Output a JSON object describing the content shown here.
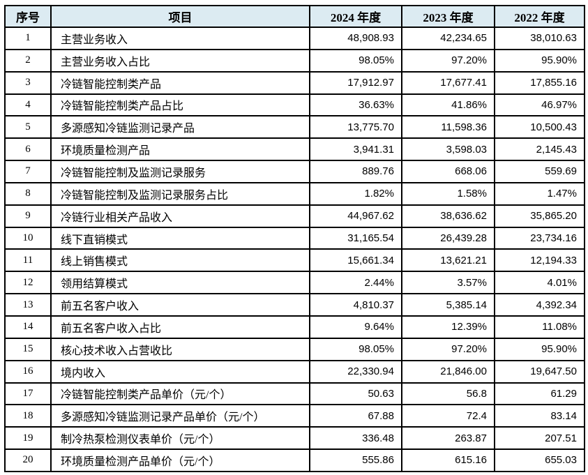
{
  "colors": {
    "header_bg": "#dcebf2",
    "border": "#000000",
    "text": "#000000",
    "page_bg": "#ffffff"
  },
  "table": {
    "headers": [
      "序号",
      "项目",
      "2024 年度",
      "2023 年度",
      "2022 年度"
    ],
    "rows": [
      {
        "no": "1",
        "item": "主营业务收入",
        "y2024": "48,908.93",
        "y2023": "42,234.65",
        "y2022": "38,010.63"
      },
      {
        "no": "2",
        "item": "主营业务收入占比",
        "y2024": "98.05%",
        "y2023": "97.20%",
        "y2022": "95.90%"
      },
      {
        "no": "3",
        "item": "冷链智能控制类产品",
        "y2024": "17,912.97",
        "y2023": "17,677.41",
        "y2022": "17,855.16"
      },
      {
        "no": "4",
        "item": "冷链智能控制类产品占比",
        "y2024": "36.63%",
        "y2023": "41.86%",
        "y2022": "46.97%"
      },
      {
        "no": "5",
        "item": "多源感知冷链监测记录产品",
        "y2024": "13,775.70",
        "y2023": "11,598.36",
        "y2022": "10,500.43"
      },
      {
        "no": "6",
        "item": "环境质量检测产品",
        "y2024": "3,941.31",
        "y2023": "3,598.03",
        "y2022": "2,145.43"
      },
      {
        "no": "7",
        "item": "冷链智能控制及监测记录服务",
        "y2024": "889.76",
        "y2023": "668.06",
        "y2022": "559.69"
      },
      {
        "no": "8",
        "item": "冷链智能控制及监测记录服务占比",
        "y2024": "1.82%",
        "y2023": "1.58%",
        "y2022": "1.47%"
      },
      {
        "no": "9",
        "item": "冷链行业相关产品收入",
        "y2024": "44,967.62",
        "y2023": "38,636.62",
        "y2022": "35,865.20"
      },
      {
        "no": "10",
        "item": "线下直销模式",
        "y2024": "31,165.54",
        "y2023": "26,439.28",
        "y2022": "23,734.16"
      },
      {
        "no": "11",
        "item": "线上销售模式",
        "y2024": "15,661.34",
        "y2023": "13,621.21",
        "y2022": "12,194.33"
      },
      {
        "no": "12",
        "item": "领用结算模式",
        "y2024": "2.44%",
        "y2023": "3.57%",
        "y2022": "4.01%"
      },
      {
        "no": "13",
        "item": "前五名客户收入",
        "y2024": "4,810.37",
        "y2023": "5,385.14",
        "y2022": "4,392.34"
      },
      {
        "no": "14",
        "item": "前五名客户收入占比",
        "y2024": "9.64%",
        "y2023": "12.39%",
        "y2022": "11.08%"
      },
      {
        "no": "15",
        "item": "核心技术收入占营收比",
        "y2024": "98.05%",
        "y2023": "97.20%",
        "y2022": "95.90%"
      },
      {
        "no": "16",
        "item": "境内收入",
        "y2024": "22,330.94",
        "y2023": "21,846.00",
        "y2022": "19,647.50"
      },
      {
        "no": "17",
        "item": "冷链智能控制类产品单价（元/个）",
        "y2024": "50.63",
        "y2023": "56.8",
        "y2022": "61.29"
      },
      {
        "no": "18",
        "item": "多源感知冷链监测记录产品单价（元/个）",
        "y2024": "67.88",
        "y2023": "72.4",
        "y2022": "83.14"
      },
      {
        "no": "19",
        "item": "制冷热泵检测仪表单价（元/个）",
        "y2024": "336.48",
        "y2023": "263.87",
        "y2022": "207.51"
      },
      {
        "no": "20",
        "item": "环境质量检测产品单价（元/个）",
        "y2024": "555.86",
        "y2023": "615.16",
        "y2022": "655.03"
      }
    ]
  }
}
